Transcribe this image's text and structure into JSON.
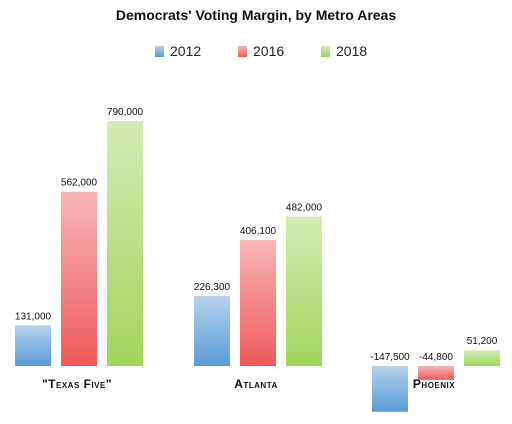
{
  "chart_data": {
    "type": "bar",
    "title": "Democrats' Voting Margin, by Metro Areas",
    "categories": [
      "\"Texas Five\"",
      "Atlanta",
      "Phoenix"
    ],
    "series": [
      {
        "name": "2012",
        "values": [
          131000,
          226300,
          -147500
        ],
        "labels": [
          "131,000",
          "226,300",
          "-147,500"
        ]
      },
      {
        "name": "2016",
        "values": [
          562000,
          406100,
          -44800
        ],
        "labels": [
          "562,000",
          "406,100",
          "-44,800"
        ]
      },
      {
        "name": "2018",
        "values": [
          790000,
          482000,
          51200
        ],
        "labels": [
          "790,000",
          "482,000",
          "51,200"
        ]
      }
    ],
    "ylim": [
      -170000,
      800000
    ],
    "grid": false,
    "legend_position": "top",
    "colors": {
      "2012": "#5b9bd5",
      "2016": "#ee5a5a",
      "2018": "#9fd55a"
    }
  }
}
